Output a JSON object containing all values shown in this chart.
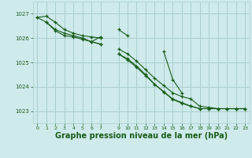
{
  "background_color": "#ceeaea",
  "grid_color": "#aacece",
  "line_color": "#1a5c1a",
  "marker_color": "#1a5c1a",
  "xlabel": "Graphe pression niveau de la mer (hPa)",
  "xlabel_fontsize": 7,
  "ylim": [
    1022.5,
    1027.5
  ],
  "yticks": [
    1023,
    1024,
    1025,
    1026,
    1027
  ],
  "xlim": [
    -0.5,
    23.5
  ],
  "xticks": [
    0,
    1,
    2,
    3,
    4,
    5,
    6,
    7,
    9,
    10,
    11,
    12,
    13,
    14,
    15,
    16,
    17,
    18,
    19,
    20,
    21,
    22,
    23
  ],
  "xtick_labels": [
    "0",
    "1",
    "2",
    "3",
    "4",
    "5",
    "6",
    "7",
    "9",
    "10",
    "11",
    "12",
    "13",
    "14",
    "15",
    "16",
    "17",
    "18",
    "19",
    "20",
    "21",
    "22",
    "23"
  ],
  "series": [
    [
      1026.85,
      1026.9,
      1026.65,
      1026.35,
      1026.2,
      1026.1,
      1026.05,
      1026.0,
      null,
      null,
      null,
      null,
      null,
      null,
      null,
      null,
      null,
      null,
      null,
      null,
      null,
      null,
      null,
      null
    ],
    [
      null,
      null,
      null,
      null,
      null,
      null,
      null,
      null,
      null,
      1025.55,
      1025.35,
      1025.05,
      1024.7,
      1024.35,
      1024.05,
      1023.75,
      1023.6,
      1023.5,
      1023.2,
      1023.15,
      1023.1,
      1023.1,
      1023.1,
      1023.1
    ],
    [
      null,
      1026.65,
      1026.35,
      1026.2,
      1026.1,
      1026.0,
      1025.85,
      1025.75,
      null,
      1025.35,
      1025.1,
      1024.8,
      1024.45,
      1024.1,
      1023.8,
      1023.5,
      1023.35,
      1023.2,
      1023.1,
      1023.1,
      1023.1,
      1023.1,
      1023.1,
      1023.1
    ],
    [
      null,
      null,
      null,
      null,
      null,
      null,
      1025.85,
      1026.05,
      null,
      1026.35,
      1026.1,
      null,
      null,
      null,
      1025.45,
      1024.3,
      1023.75,
      null,
      null,
      null,
      null,
      null,
      null,
      null
    ],
    [
      1026.85,
      1026.65,
      1026.3,
      1026.1,
      1026.05,
      1025.95,
      1025.85,
      1025.75,
      null,
      1025.35,
      1025.15,
      1024.85,
      1024.5,
      1024.1,
      1023.78,
      1023.48,
      1023.32,
      1023.2,
      1023.1,
      1023.1,
      1023.1,
      1023.1,
      1023.1,
      1023.1
    ]
  ]
}
